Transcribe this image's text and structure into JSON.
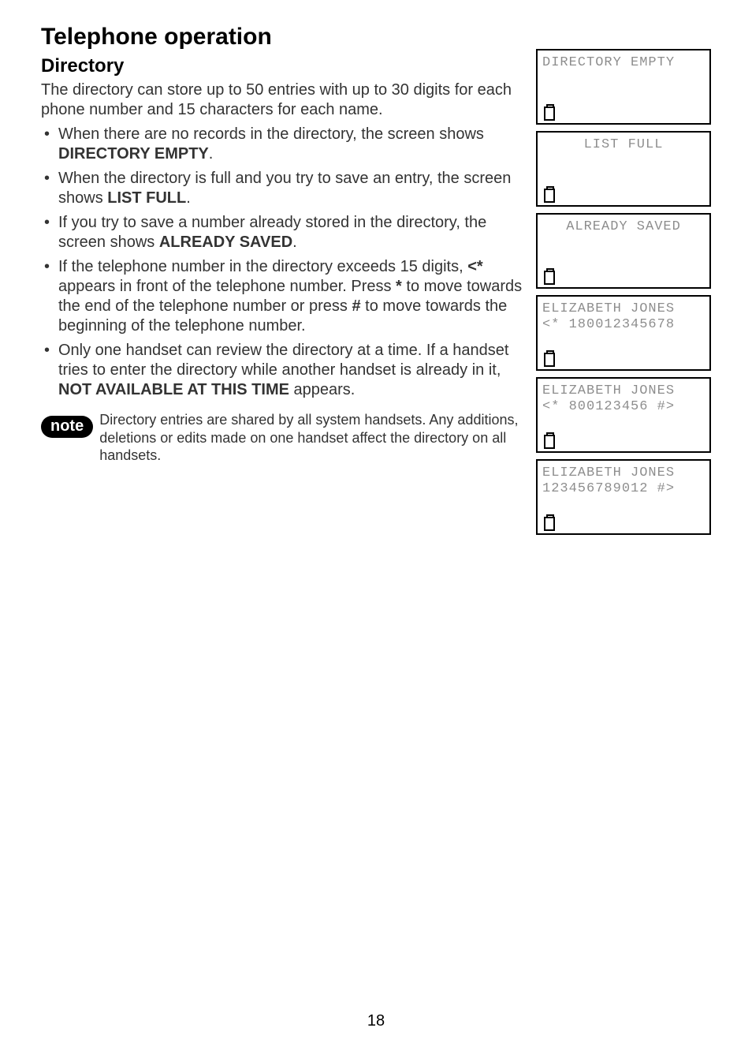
{
  "title": "Telephone operation",
  "section": "Directory",
  "intro": "The directory can store up to 50 entries with up to 30 digits for each phone number and 15 characters for each name.",
  "bullets": [
    {
      "pre": "When there are no records in the directory, the screen shows ",
      "bold": "DIRECTORY EMPTY",
      "post": "."
    },
    {
      "pre": "When the directory is full and you try to save an entry, the screen shows ",
      "bold": "LIST FULL",
      "post": "."
    },
    {
      "pre": "If you try to save a number already stored in the directory, the screen shows ",
      "bold": "ALREADY SAVED",
      "post": "."
    },
    {
      "html": "If the telephone number in the directory exceeds 15 digits, <span class=\"bold\">&lt;*</span> appears in front of the telephone number. Press <span class=\"bold\">*</span> to move towards the end of the telephone number or press <span class=\"bold\">#</span> to move towards the beginning of the telephone number."
    },
    {
      "html": "Only one handset can review the directory at a time. If a handset tries to enter the directory while another handset is already in it, <span class=\"bold\">NOT AVAILABLE AT THIS TIME</span> appears."
    }
  ],
  "note_label": "note",
  "note_text": "Directory entries are shared by all system handsets. Any additions, deletions or edits made on one handset affect the directory on all handsets.",
  "lcd_screens": [
    {
      "line1": "DIRECTORY EMPTY",
      "line2": "",
      "center1": false
    },
    {
      "line1": "LIST FULL",
      "line2": "",
      "center1": true
    },
    {
      "line1": "ALREADY SAVED",
      "line2": "",
      "center1": true
    },
    {
      "line1": "ELIZABETH JONES",
      "line2": "<* 180012345678",
      "center1": false
    },
    {
      "line1": "ELIZABETH JONES",
      "line2": "<* 800123456 #>",
      "center1": false
    },
    {
      "line1": "ELIZABETH JONES",
      "line2": "123456789012 #>",
      "center1": false
    }
  ],
  "page_number": "18"
}
